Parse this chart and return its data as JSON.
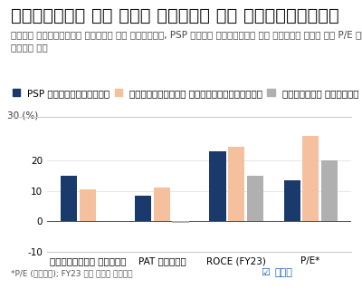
{
  "title": "साथियों के साथ तुलना और वैल्यूएशन",
  "subtitle": "तेज़ रेवेन्यू ग्रोथ के बावजूद, PSP अपने साथियों की तुलना में कम P/E पर क़ारोबार\nकरता है",
  "ylabel_top": "30 (%)",
  "legend_labels": [
    "PSP प्रोजेक्ट्स",
    "अहलूवालिया कॉन्ट्रैक्ट्स",
    "कैपेसिट इंफ्रा"
  ],
  "bar_colors": [
    "#1a3a6b",
    "#f5c09e",
    "#b0b0b0"
  ],
  "categories": [
    "रेवेन्यू ग्रोथ",
    "PAT ग्रोथ",
    "ROCE (FY23)",
    "P/E*"
  ],
  "values": {
    "PSP प्रोजेक्ट्स": [
      15,
      8.5,
      23,
      13.5
    ],
    "अहलूवालिया कॉन्ट्रैक्ट्स": [
      10.5,
      11,
      24.5,
      28
    ],
    "कैपेसिट इंफ्रा": [
      null,
      -0.5,
      15,
      20
    ]
  },
  "ylim": [
    -10,
    30
  ],
  "yticks": [
    -10,
    0,
    10,
    20
  ],
  "footnote": "*P/E (गुना); FY23 के लिए डेटा",
  "dhanak_text": "धनक",
  "background_color": "#ffffff",
  "title_fontsize": 14,
  "subtitle_fontsize": 7.5,
  "tick_fontsize": 7.5,
  "legend_fontsize": 7.5,
  "footnote_fontsize": 6.5
}
